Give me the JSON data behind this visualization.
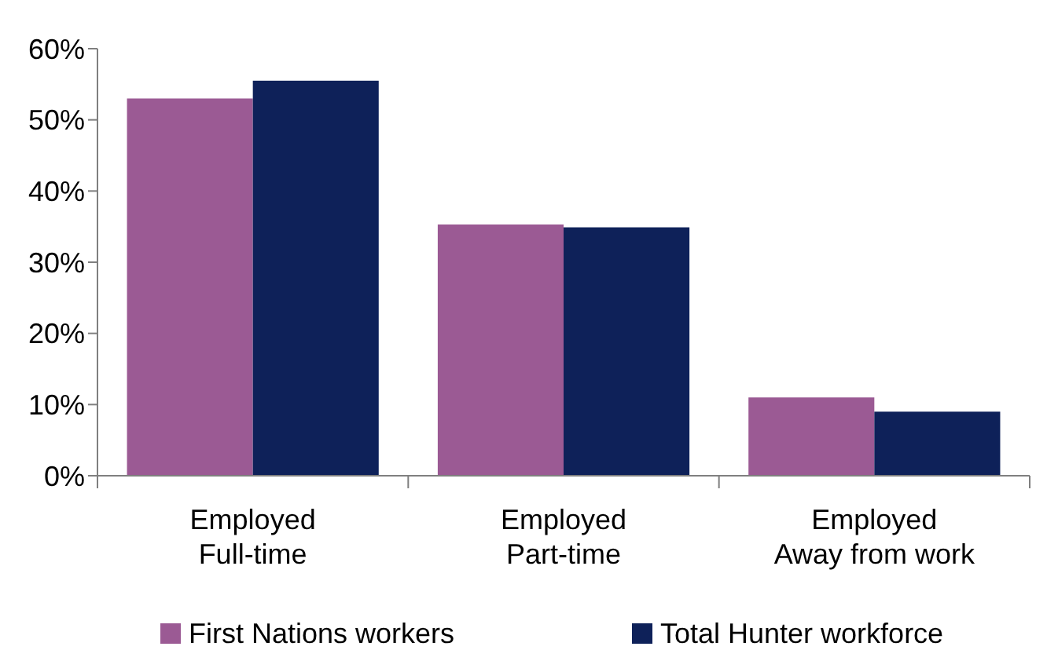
{
  "chart_data": {
    "type": "bar",
    "categories": [
      "Employed\nFull-time",
      "Employed\nPart-time",
      "Employed\nAway from work"
    ],
    "series": [
      {
        "name": "First Nations workers",
        "color": "#9b5a94",
        "values": [
          53,
          35.3,
          11
        ]
      },
      {
        "name": "Total Hunter workforce",
        "color": "#0e2159",
        "values": [
          55.5,
          34.9,
          9
        ]
      }
    ],
    "ylim": [
      0,
      60
    ],
    "yticks": [
      {
        "value": 0,
        "label": "0%"
      },
      {
        "value": 10,
        "label": "10%"
      },
      {
        "value": 20,
        "label": "20%"
      },
      {
        "value": 30,
        "label": "30%"
      },
      {
        "value": 40,
        "label": "40%"
      },
      {
        "value": 50,
        "label": "50%"
      },
      {
        "value": 60,
        "label": "60%"
      }
    ],
    "grid": false,
    "legend": "bottom"
  }
}
